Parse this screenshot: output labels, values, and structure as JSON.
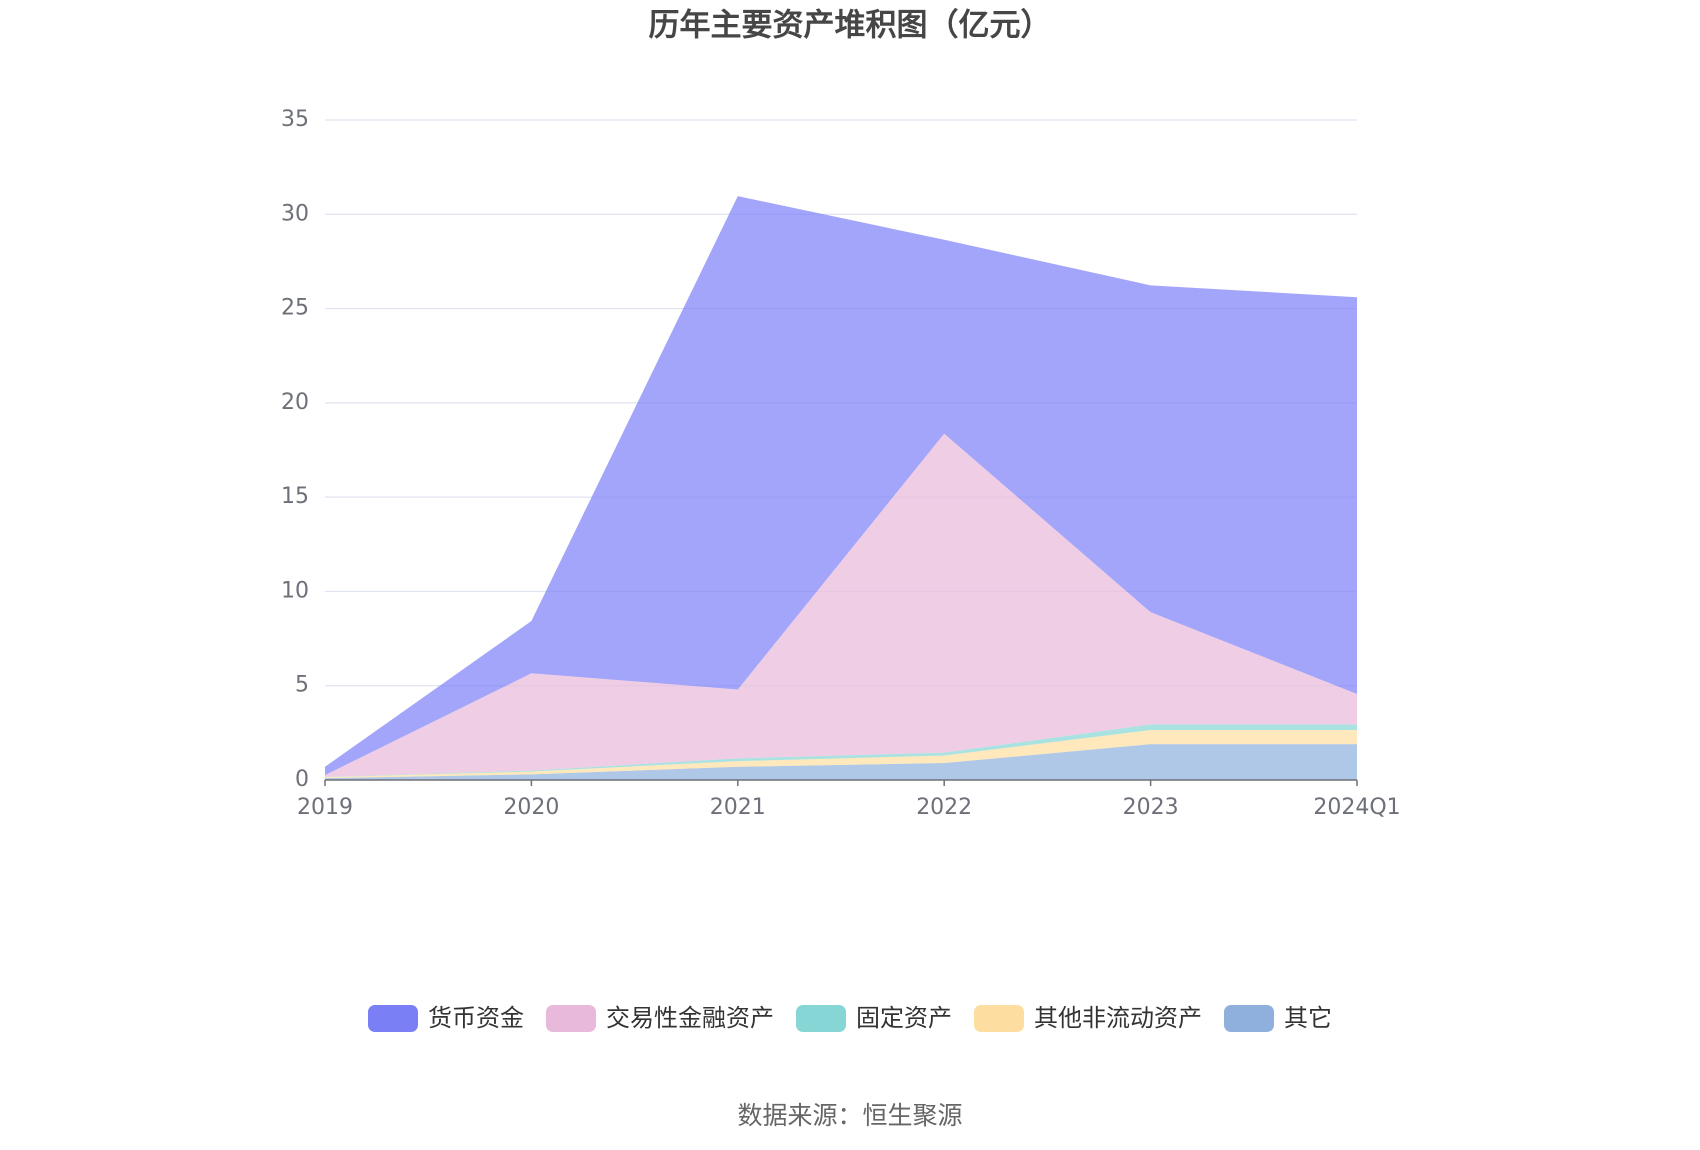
{
  "chart_data": {
    "type": "stacked_area",
    "title": "历年主要资产堆积图（亿元）",
    "source": "数据来源：恒生聚源",
    "categories": [
      "2019",
      "2020",
      "2021",
      "2022",
      "2023",
      "2024Q1"
    ],
    "series": [
      {
        "name": "货币资金",
        "color": "#7b7ff6",
        "values": [
          0.44,
          2.77,
          26.16,
          10.28,
          17.33,
          21.04
        ]
      },
      {
        "name": "交易性金融资产",
        "color": "#e8b9da",
        "values": [
          0.1,
          5.16,
          3.65,
          16.92,
          5.95,
          1.61
        ]
      },
      {
        "name": "固定资产",
        "color": "#86d6d6",
        "values": [
          0.01,
          0.05,
          0.15,
          0.15,
          0.3,
          0.3
        ]
      },
      {
        "name": "其他非流动资产",
        "color": "#fddea0",
        "values": [
          0.05,
          0.15,
          0.3,
          0.4,
          0.75,
          0.75
        ]
      },
      {
        "name": "其它",
        "color": "#8fb0dd",
        "values": [
          0.1,
          0.3,
          0.7,
          0.9,
          1.9,
          1.9
        ]
      }
    ],
    "ylim": [
      0,
      35
    ],
    "yticks": [
      0,
      5,
      10,
      15,
      20,
      25,
      30,
      35
    ],
    "grid": true
  }
}
